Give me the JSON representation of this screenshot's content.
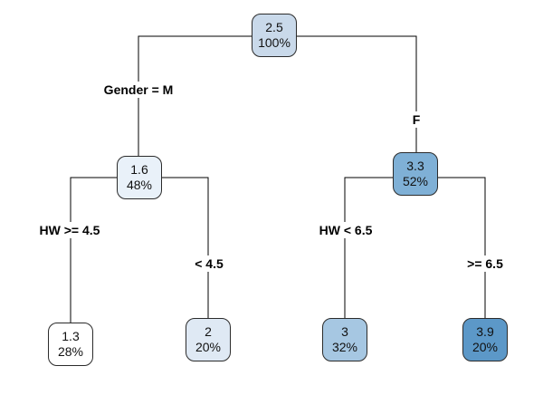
{
  "nodes": {
    "root": {
      "value": "2.5",
      "pct": "100%",
      "color": "#c9d9ea"
    },
    "left": {
      "value": "1.6",
      "pct": "48%",
      "color": "#e9f1f9"
    },
    "right": {
      "value": "3.3",
      "pct": "52%",
      "color": "#7fb0d6"
    },
    "ll": {
      "value": "1.3",
      "pct": "28%",
      "color": "#ffffff"
    },
    "lr": {
      "value": "2",
      "pct": "20%",
      "color": "#dfe9f4"
    },
    "rl": {
      "value": "3",
      "pct": "32%",
      "color": "#a6c7e2"
    },
    "rr": {
      "value": "3.9",
      "pct": "20%",
      "color": "#5c98c8"
    }
  },
  "splits": {
    "gender_left": "Gender = M",
    "gender_right": "F",
    "hw_left": "HW >= 4.5",
    "hw_left_else": "< 4.5",
    "hw_right": "HW < 6.5",
    "hw_right_else": ">= 6.5"
  }
}
